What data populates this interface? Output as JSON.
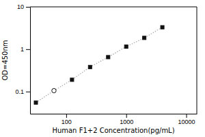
{
  "chart_data": {
    "type": "line",
    "x_label": "Human F1+2 Concentration(pg/mL)",
    "y_label": "OD=450nm",
    "x": [
      31.25,
      62.5,
      125,
      250,
      500,
      1000,
      2000,
      4000
    ],
    "series": [
      {
        "type": "line",
        "line_style": "dotted",
        "color": "#aaaaaa",
        "values": [
          0.055,
          0.105,
          0.19,
          0.38,
          0.65,
          1.15,
          1.85,
          3.3
        ]
      },
      {
        "type": "scatter",
        "marker": "square",
        "color": "#111111",
        "values": [
          0.055,
          null,
          0.19,
          0.38,
          0.65,
          1.15,
          1.85,
          3.3
        ]
      },
      {
        "type": "scatter",
        "marker": "open-circle",
        "color": "#111111",
        "values": [
          null,
          0.105,
          null,
          null,
          null,
          null,
          null,
          null
        ]
      }
    ],
    "log": true,
    "grid": false,
    "xlim": [
      25,
      15000
    ],
    "ylim": [
      0.03,
      10
    ],
    "xticks": [
      100,
      1000,
      10000
    ],
    "yticks": [
      0.1,
      1,
      10
    ]
  }
}
